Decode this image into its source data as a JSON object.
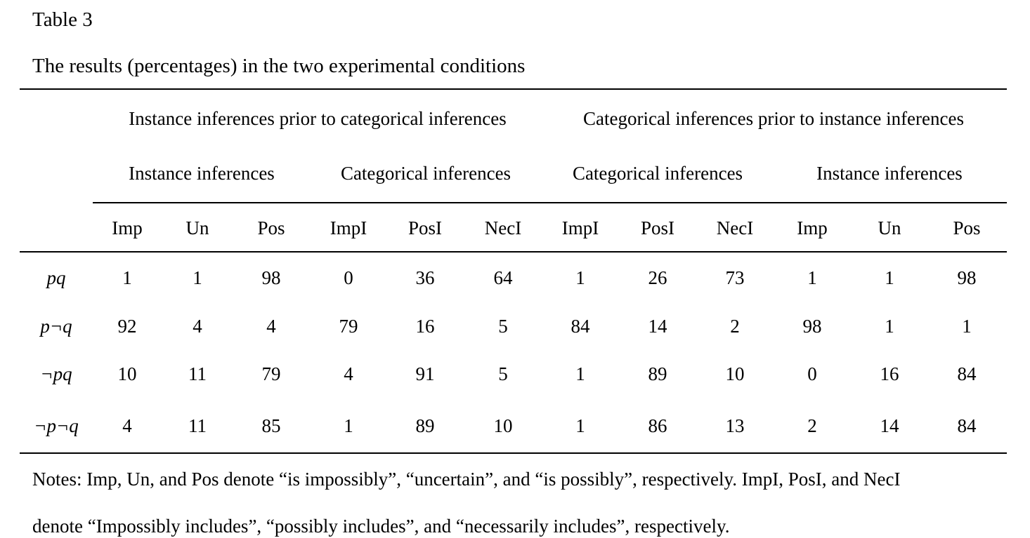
{
  "table": {
    "label": "Table 3",
    "caption": "The results (percentages) in the two experimental conditions",
    "conditions": [
      "Instance inferences prior to categorical inferences",
      "Categorical inferences prior to instance inferences"
    ],
    "subgroups": [
      "Instance inferences",
      "Categorical inferences",
      "Categorical inferences",
      "Instance inferences"
    ],
    "columns": [
      "Imp",
      "Un",
      "Pos",
      "ImpI",
      "PosI",
      "NecI",
      "ImpI",
      "PosI",
      "NecI",
      "Imp",
      "Un",
      "Pos"
    ],
    "rows": [
      {
        "label": "pq",
        "values": [
          "1",
          "1",
          "98",
          "0",
          "36",
          "64",
          "1",
          "26",
          "73",
          "1",
          "1",
          "98"
        ]
      },
      {
        "label": "p¬q",
        "values": [
          "92",
          "4",
          "4",
          "79",
          "16",
          "5",
          "84",
          "14",
          "2",
          "98",
          "1",
          "1"
        ]
      },
      {
        "label": "¬pq",
        "values": [
          "10",
          "11",
          "79",
          "4",
          "91",
          "5",
          "1",
          "89",
          "10",
          "0",
          "16",
          "84"
        ]
      },
      {
        "label": "¬p¬q",
        "values": [
          "4",
          "11",
          "85",
          "1",
          "89",
          "10",
          "1",
          "86",
          "13",
          "2",
          "14",
          "84"
        ]
      }
    ],
    "notes": [
      "Notes: Imp, Un, and Pos denote “is impossibly”, “uncertain”, and “is possibly”, respectively. ImpI, PosI, and NecI",
      "denote “Impossibly includes”, “possibly includes”, and “necessarily includes”, respectively."
    ]
  }
}
